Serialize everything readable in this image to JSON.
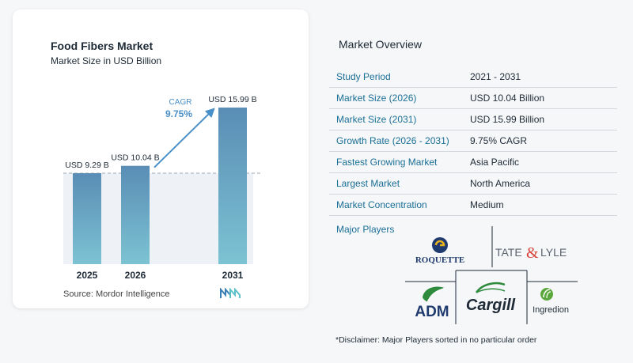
{
  "chart_card": {
    "title": "Food Fibers Market",
    "subtitle": "Market Size in USD Billion",
    "source": "Source:  Mordor Intelligence"
  },
  "chart_data": {
    "type": "bar",
    "title": "Food Fibers Market",
    "subtitle": "Market Size in USD Billion",
    "categories": [
      "2025",
      "2026",
      "2031"
    ],
    "values": [
      9.29,
      10.04,
      15.99
    ],
    "data_labels": [
      "USD 9.29 B",
      "USD 10.04 B",
      "USD 15.99 B"
    ],
    "annotation": {
      "label": "CAGR",
      "value": "9.75%"
    },
    "bar_color": "#5b94b8",
    "accent_color": "#4a90c8",
    "grid": false
  },
  "overview": {
    "title": "Market Overview",
    "rows": [
      {
        "label": "Study Period",
        "value": "2021 - 2031"
      },
      {
        "label": "Market Size (2026)",
        "value": "USD 10.04 Billion"
      },
      {
        "label": "Market Size (2031)",
        "value": "USD 15.99 Billion"
      },
      {
        "label": "Growth Rate (2026 - 2031)",
        "value": "9.75% CAGR"
      },
      {
        "label": "Fastest Growing Market",
        "value": "Asia Pacific"
      },
      {
        "label": "Largest Market",
        "value": "North America"
      },
      {
        "label": "Market Concentration",
        "value": "Medium"
      }
    ],
    "players_title": "Major Players",
    "players": {
      "roquette": "ROQUETTE",
      "tate_lyle_left": "TATE",
      "tate_lyle_amp": "&",
      "tate_lyle_right": "LYLE",
      "adm": "ADM",
      "cargill": "Cargill",
      "ingredion": "Ingredion"
    },
    "disclaimer": "*Disclaimer: Major Players sorted in no particular order"
  },
  "colors": {
    "label_blue": "#1a6f96",
    "bar": "#5b94b8",
    "roquette_navy": "#1f3a6e",
    "tate_red": "#d9443a",
    "adm_green": "#2e8b3e",
    "ingredion_green": "#5aa83c"
  }
}
